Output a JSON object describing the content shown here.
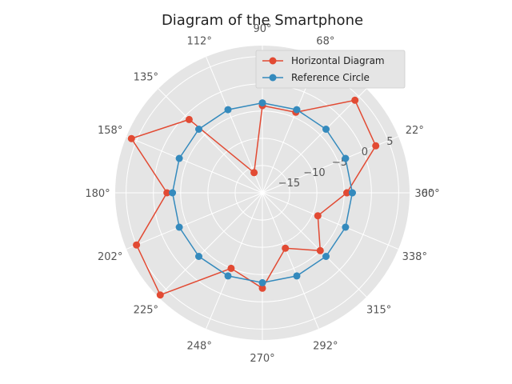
{
  "chart_data": {
    "type": "line",
    "subtype": "polar",
    "title": "Diagram of the Smartphone",
    "theta_tick_labels": [
      "0°",
      "22°",
      "45°",
      "68°",
      "90°",
      "112°",
      "135°",
      "158°",
      "180°",
      "202°",
      "225°",
      "248°",
      "270°",
      "292°",
      "315°",
      "338°",
      "360°"
    ],
    "r_tick_labels": [
      "−15",
      "−10",
      "−5",
      "0",
      "5"
    ],
    "r_ticks": [
      -15,
      -10,
      -5,
      0,
      5
    ],
    "rlim": [
      -20,
      7
    ],
    "grid": true,
    "legend_position": "top-right",
    "series": [
      {
        "name": "Horizontal Diagram",
        "color": "#E24A33",
        "theta_deg": [
          0,
          22.5,
          45,
          67.5,
          90,
          112.5,
          135,
          157.5,
          180,
          202.5,
          225,
          247.5,
          270,
          292.5,
          315,
          337.5,
          360
        ],
        "values": [
          -4.5,
          2.5,
          4.0,
          -4.0,
          -4.0,
          -16.0,
          -1.0,
          6.0,
          -2.5,
          5.0,
          6.5,
          -5.0,
          -2.5,
          -9.0,
          -5.0,
          -9.0,
          -4.5
        ]
      },
      {
        "name": "Reference Circle",
        "color": "#348ABD",
        "theta_deg": [
          0,
          22.5,
          45,
          67.5,
          90,
          112.5,
          135,
          157.5,
          180,
          202.5,
          225,
          247.5,
          270,
          292.5,
          315,
          337.5,
          360
        ],
        "values": [
          -3.5,
          -3.5,
          -3.5,
          -3.5,
          -3.5,
          -3.5,
          -3.5,
          -3.5,
          -3.5,
          -3.5,
          -3.5,
          -3.5,
          -3.5,
          -3.5,
          -3.5,
          -3.5,
          -3.5
        ]
      }
    ]
  }
}
